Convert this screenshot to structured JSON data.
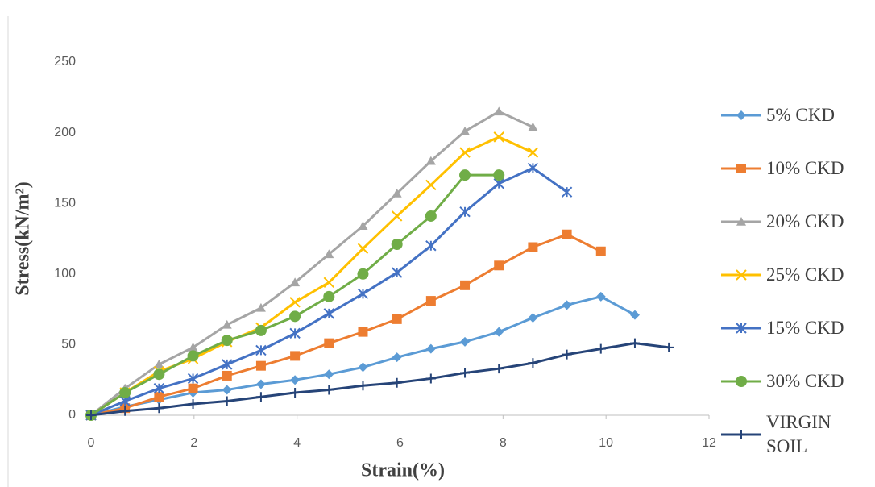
{
  "chart_data": {
    "type": "line",
    "x_label": "Strain(%)",
    "y_label": "Stress(kN/m²)",
    "xlim": [
      0,
      12
    ],
    "xticks": [
      0,
      2,
      4,
      6,
      8,
      10,
      12
    ],
    "ylim": [
      0,
      250
    ],
    "yticks": [
      0,
      50,
      100,
      150,
      200,
      250
    ],
    "grid": false,
    "series": [
      {
        "name": "5% CKD",
        "color": "#5b9bd5",
        "marker": "diamond",
        "x": [
          0,
          0.66,
          1.32,
          1.98,
          2.64,
          3.3,
          3.96,
          4.62,
          5.28,
          5.94,
          6.6,
          7.26,
          7.92,
          8.58,
          9.24,
          9.9,
          10.56
        ],
        "values": [
          0,
          6,
          11,
          16,
          18,
          22,
          25,
          29,
          34,
          41,
          47,
          52,
          59,
          69,
          78,
          84,
          71
        ]
      },
      {
        "name": "10% CKD",
        "color": "#ed7d31",
        "marker": "square",
        "x": [
          0,
          0.66,
          1.32,
          1.98,
          2.64,
          3.3,
          3.96,
          4.62,
          5.28,
          5.94,
          6.6,
          7.26,
          7.92,
          8.58,
          9.24,
          9.9
        ],
        "values": [
          0,
          5,
          13,
          19,
          28,
          35,
          42,
          51,
          59,
          68,
          81,
          92,
          106,
          119,
          128,
          116
        ]
      },
      {
        "name": "20% CKD",
        "color": "#a5a5a5",
        "marker": "triangle",
        "x": [
          0,
          0.66,
          1.32,
          1.98,
          2.64,
          3.3,
          3.96,
          4.62,
          5.28,
          5.94,
          6.6,
          7.26,
          7.92,
          8.58
        ],
        "values": [
          0,
          19,
          36,
          48,
          64,
          76,
          94,
          114,
          134,
          157,
          180,
          201,
          215,
          204
        ]
      },
      {
        "name": "25% CKD",
        "color": "#ffc000",
        "marker": "x",
        "x": [
          0,
          0.66,
          1.32,
          1.98,
          2.64,
          3.3,
          3.96,
          4.62,
          5.28,
          5.94,
          6.6,
          7.26,
          7.92,
          8.58
        ],
        "values": [
          0,
          16,
          31,
          40,
          52,
          62,
          80,
          94,
          118,
          141,
          163,
          186,
          197,
          186
        ]
      },
      {
        "name": "15% CKD",
        "color": "#4472c4",
        "marker": "star",
        "x": [
          0,
          0.66,
          1.32,
          1.98,
          2.64,
          3.3,
          3.96,
          4.62,
          5.28,
          5.94,
          6.6,
          7.26,
          7.92,
          8.58,
          9.24
        ],
        "values": [
          0,
          10,
          19,
          26,
          36,
          46,
          58,
          72,
          86,
          101,
          120,
          144,
          164,
          175,
          158
        ]
      },
      {
        "name": "30% CKD",
        "color": "#70ad47",
        "marker": "circle",
        "x": [
          0,
          0.66,
          1.32,
          1.98,
          2.64,
          3.3,
          3.96,
          4.62,
          5.28,
          5.94,
          6.6,
          7.26,
          7.92
        ],
        "values": [
          0,
          16,
          29,
          42,
          53,
          60,
          70,
          84,
          100,
          121,
          141,
          170,
          170
        ]
      },
      {
        "name": "VIRGIN SOIL",
        "color": "#264478",
        "marker": "plus",
        "x": [
          0,
          0.66,
          1.32,
          1.98,
          2.64,
          3.3,
          3.96,
          4.62,
          5.28,
          5.94,
          6.6,
          7.26,
          7.92,
          8.58,
          9.24,
          9.9,
          10.56,
          11.22
        ],
        "values": [
          0,
          3,
          5,
          8,
          10,
          13,
          16,
          18,
          21,
          23,
          26,
          30,
          33,
          37,
          43,
          47,
          51,
          48
        ]
      }
    ]
  }
}
